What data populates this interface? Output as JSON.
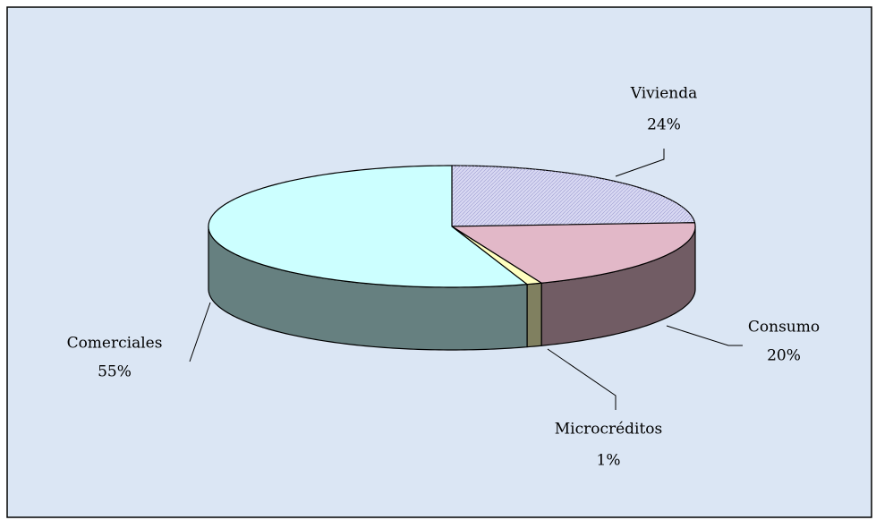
{
  "chart_data": {
    "type": "pie",
    "categories": [
      "Vivienda",
      "Consumo",
      "Microcréditos",
      "Comerciales"
    ],
    "values": [
      24,
      20,
      1,
      55
    ],
    "value_labels": [
      "24%",
      "20%",
      "1%",
      "55%"
    ],
    "colors": [
      "#d8d8f2",
      "#e2b8c8",
      "#ffffc0",
      "#ccffff"
    ],
    "three_d": true
  }
}
